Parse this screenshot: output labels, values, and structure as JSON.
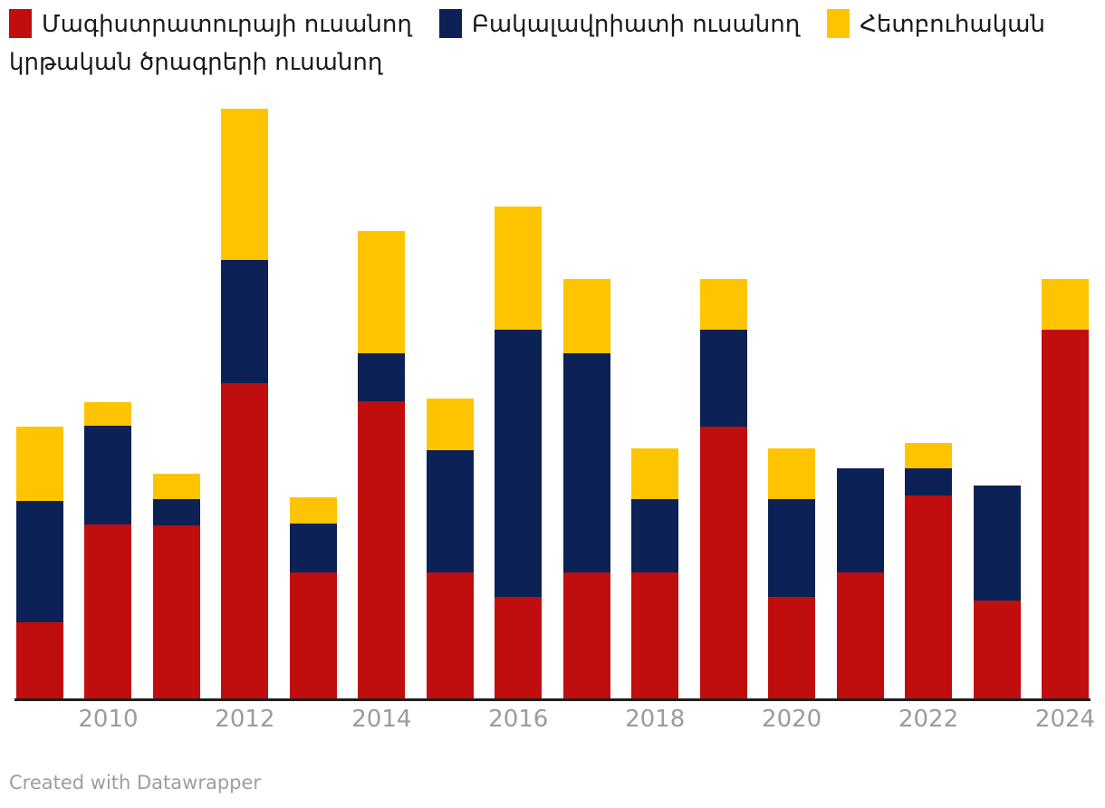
{
  "legend": {
    "items": [
      {
        "key": "masters",
        "label": "Մագիստրատուրայի ուսանող",
        "color": "#C00D0D"
      },
      {
        "key": "bachelors",
        "label": "Բակալավրիատի ուսանող",
        "color": "#0C2156"
      },
      {
        "key": "postgraduate",
        "label": "Հետբուհական կրթական ծրագրերի ուսանող",
        "color": "#FFC400"
      }
    ]
  },
  "chart_data": {
    "type": "bar",
    "stacked": true,
    "title": "",
    "xlabel": "",
    "ylabel": "",
    "grid": false,
    "legend_position": "top-left",
    "categories": [
      2009,
      2010,
      2011,
      2012,
      2013,
      2014,
      2015,
      2016,
      2017,
      2018,
      2019,
      2020,
      2021,
      2022,
      2023,
      2024
    ],
    "x_tick_labels": [
      "2010",
      "2012",
      "2014",
      "2016",
      "2018",
      "2020",
      "2022",
      "2024"
    ],
    "value_units": "estimated relative units (no y-axis ticks shown in chart)",
    "ylim": [
      0,
      673
    ],
    "series": [
      {
        "key": "masters",
        "name": "Մագիստրատուրայի ուսանող",
        "color": "#C00D0D",
        "values": [
          86,
          194,
          193,
          350,
          141,
          330,
          141,
          114,
          141,
          141,
          302,
          114,
          141,
          226,
          110,
          409
        ]
      },
      {
        "key": "bachelors",
        "name": "Բակալավրիատի ուսանող",
        "color": "#0C2156",
        "values": [
          134,
          109,
          29,
          136,
          54,
          53,
          135,
          295,
          242,
          81,
          107,
          108,
          115,
          30,
          127,
          0
        ]
      },
      {
        "key": "postgraduate",
        "name": "Հետբուհական կրթական ծրագրերի ուսանող",
        "color": "#FFC400",
        "values": [
          82,
          26,
          28,
          167,
          29,
          135,
          57,
          136,
          82,
          56,
          56,
          56,
          0,
          28,
          0,
          56
        ]
      }
    ]
  },
  "axis": {
    "x_labels_color": "#9b9b9b",
    "line_color": "#1f1f1f"
  },
  "footer": {
    "credit": "Created with Datawrapper"
  }
}
